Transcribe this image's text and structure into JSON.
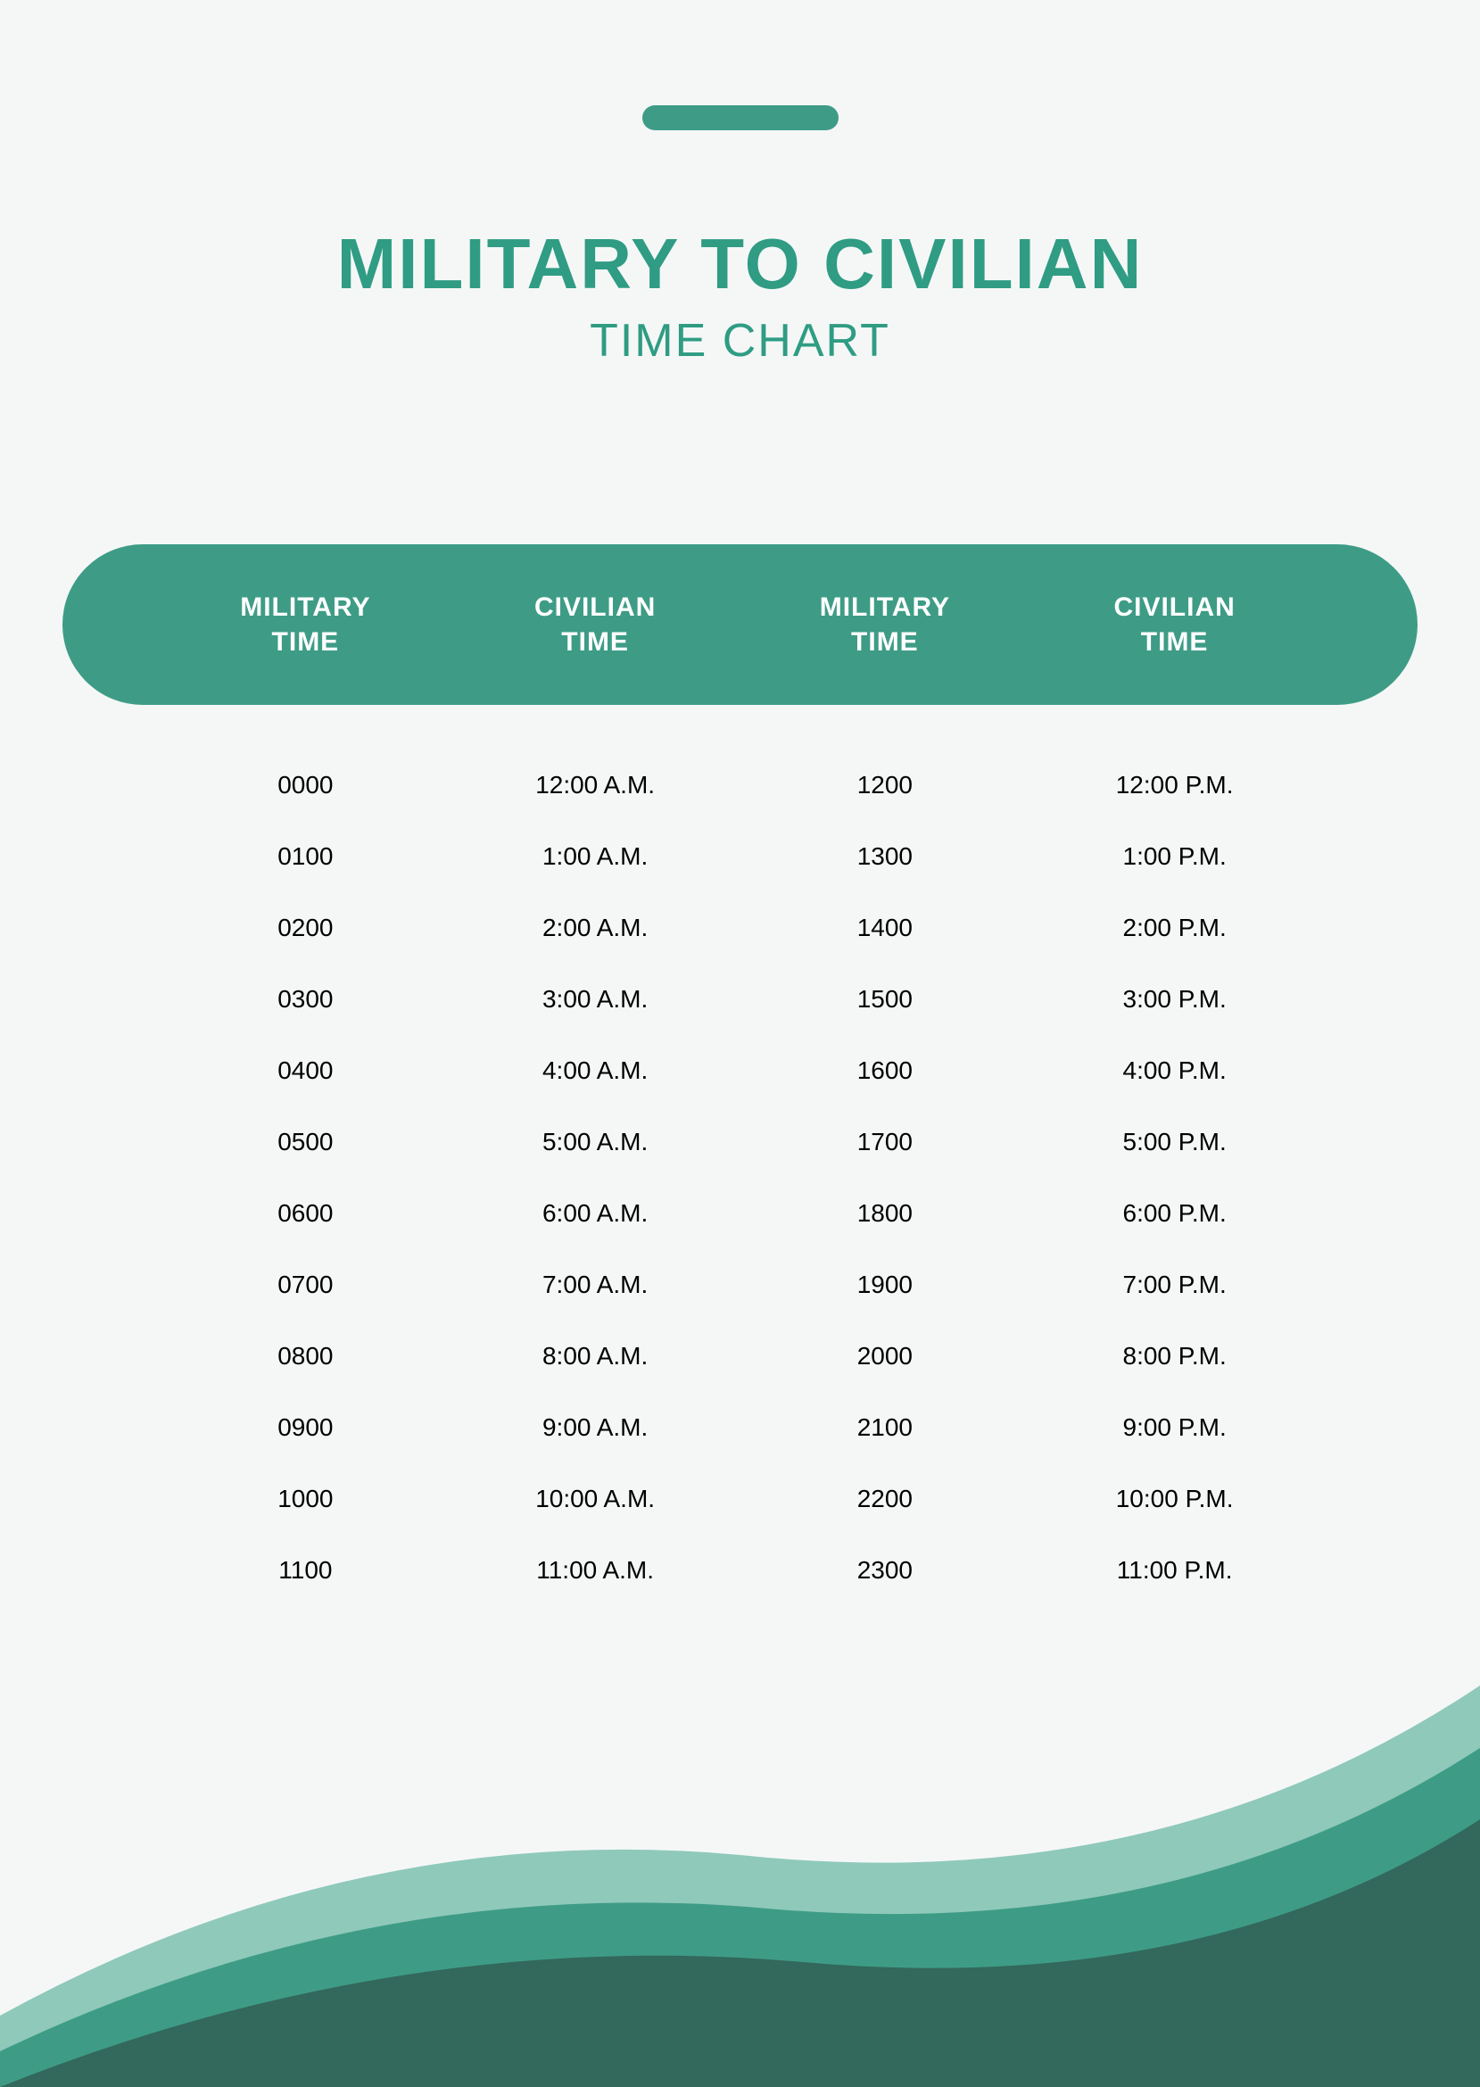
{
  "colors": {
    "background": "#f5f7f7",
    "accent": "#3e9c86",
    "title": "#2f9c83",
    "headerText": "#ffffff",
    "bodyText": "#000000",
    "waveDark": "#33685c",
    "waveMid": "#3e9c86",
    "waveLight": "#8fc9ba"
  },
  "header": {
    "titleMain": "MILITARY TO CIVILIAN",
    "titleSub": "TIME CHART"
  },
  "table": {
    "type": "table",
    "columns": [
      {
        "line1": "MILITARY",
        "line2": "TIME"
      },
      {
        "line1": "CIVILIAN",
        "line2": "TIME"
      },
      {
        "line1": "MILITARY",
        "line2": "TIME"
      },
      {
        "line1": "CIVILIAN",
        "line2": "TIME"
      }
    ],
    "rows": [
      {
        "c0": "0000",
        "c1": "12:00 A.M.",
        "c2": "1200",
        "c3": "12:00 P.M."
      },
      {
        "c0": "0100",
        "c1": "1:00 A.M.",
        "c2": "1300",
        "c3": "1:00 P.M."
      },
      {
        "c0": "0200",
        "c1": "2:00 A.M.",
        "c2": "1400",
        "c3": "2:00 P.M."
      },
      {
        "c0": "0300",
        "c1": "3:00 A.M.",
        "c2": "1500",
        "c3": "3:00 P.M."
      },
      {
        "c0": "0400",
        "c1": "4:00 A.M.",
        "c2": "1600",
        "c3": "4:00 P.M."
      },
      {
        "c0": "0500",
        "c1": "5:00 A.M.",
        "c2": "1700",
        "c3": "5:00 P.M."
      },
      {
        "c0": "0600",
        "c1": "6:00 A.M.",
        "c2": "1800",
        "c3": "6:00 P.M."
      },
      {
        "c0": "0700",
        "c1": "7:00 A.M.",
        "c2": "1900",
        "c3": "7:00 P.M."
      },
      {
        "c0": "0800",
        "c1": "8:00 A.M.",
        "c2": "2000",
        "c3": "8:00 P.M."
      },
      {
        "c0": "0900",
        "c1": "9:00 A.M.",
        "c2": "2100",
        "c3": "9:00 P.M."
      },
      {
        "c0": "1000",
        "c1": "10:00 A.M.",
        "c2": "2200",
        "c3": "10:00 P.M."
      },
      {
        "c0": "1100",
        "c1": "11:00 A.M.",
        "c2": "2300",
        "c3": "11:00 P.M."
      }
    ]
  }
}
